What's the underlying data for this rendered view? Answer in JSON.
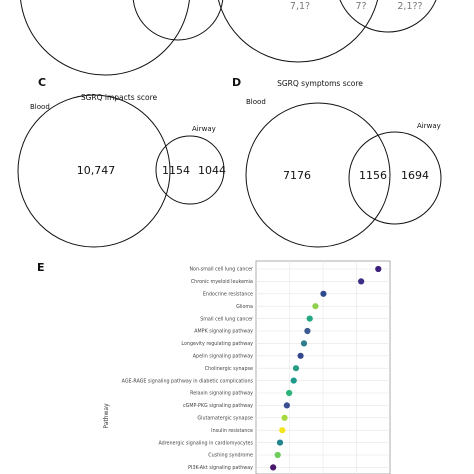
{
  "figure": {
    "panel_top_partial": {
      "left_counts": [],
      "right_counts": [
        "7,1?",
        "7?",
        "2,1??"
      ]
    },
    "panel_c": {
      "letter": "C",
      "title": "SGRQ impacts score",
      "left_set": "Blood",
      "right_set": "Airway",
      "left_only": "10,747",
      "overlap": "1154",
      "right_only": "1044"
    },
    "panel_d": {
      "letter": "D",
      "title": "SGRQ symptoms score",
      "left_set": "Blood",
      "right_set": "Airway",
      "left_only": "7176",
      "overlap": "1156",
      "right_only": "1694"
    },
    "panel_e": {
      "letter": "E",
      "y_axis_title": "Pathway"
    }
  },
  "chart_data": {
    "type": "scatter",
    "title": "",
    "xlabel": "",
    "ylabel": "Pathway",
    "grid": true,
    "categories": [
      "Non-small cell lung cancer",
      "Chronic myeloid leukemia",
      "Endocrine resistance",
      "Glioma",
      "Small cell lung cancer",
      "AMPK signaling pathway",
      "Longevity regulating pathway",
      "Apelin signaling pathway",
      "Cholinergic synapse",
      "AGE-RAGE signaling pathway in diabetic complications",
      "Relaxin signaling pathway",
      "cGMP-PKG signaling pathway",
      "Glutamatergic synapse",
      "Insulin resistance",
      "Adrenergic signaling in cardiomyocytes",
      "Cushing syndrome",
      "PI3K-Akt signaling pathway"
    ],
    "values": [
      1.0,
      0.85,
      0.52,
      0.45,
      0.4,
      0.38,
      0.35,
      0.32,
      0.28,
      0.26,
      0.22,
      0.2,
      0.18,
      0.16,
      0.14,
      0.12,
      0.08
    ],
    "colors": [
      "#3b1f7a",
      "#3a2f86",
      "#2c4a8c",
      "#8fd14f",
      "#24a884",
      "#3b5b92",
      "#2f7d8e",
      "#35478c",
      "#2a9c86",
      "#1f9a8a",
      "#2db37a",
      "#3b4f90",
      "#a6d93f",
      "#f1e31c",
      "#25858e",
      "#6ccd5a",
      "#4a176e"
    ],
    "xlim": [
      0,
      1.05
    ]
  },
  "colors": {
    "circle_stroke": "#111111",
    "panel_border": "#999999",
    "grid": "#e6e6e6"
  }
}
